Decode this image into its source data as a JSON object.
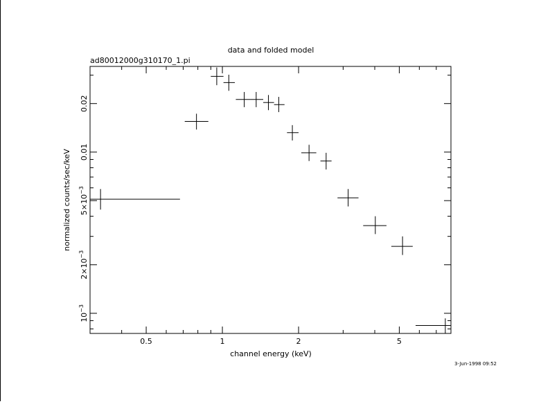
{
  "chart_data": {
    "type": "scatter",
    "title": "data and folded model",
    "subtitle": "ad80012000g310170_1.pi",
    "xlabel": "channel energy (keV)",
    "ylabel": "normalized counts/sec/keV",
    "x_scale": "log",
    "y_scale": "log",
    "xlim": [
      0.3,
      8.0
    ],
    "ylim": [
      0.00075,
      0.034
    ],
    "x_ticks": [
      {
        "value": 0.5,
        "label": "0.5"
      },
      {
        "value": 1,
        "label": "1"
      },
      {
        "value": 2,
        "label": "2"
      },
      {
        "value": 5,
        "label": "5"
      }
    ],
    "y_ticks": [
      {
        "value": 0.001,
        "mant": "10",
        "exp": "−3"
      },
      {
        "value": 0.002,
        "mant": "2×10",
        "exp": "−3"
      },
      {
        "value": 0.005,
        "mant": "5×10",
        "exp": "−3"
      },
      {
        "value": 0.01,
        "mant": "0.01",
        "exp": ""
      },
      {
        "value": 0.02,
        "mant": "0.02",
        "exp": ""
      }
    ],
    "grid": false,
    "legend": "none",
    "marker_color": "#000000",
    "series": [
      {
        "points": [
          {
            "x": 0.33,
            "xlo": 0.3,
            "xhi": 0.68,
            "y": 0.0051,
            "ylo": 0.0044,
            "yhi": 0.0059
          },
          {
            "x": 0.79,
            "xlo": 0.71,
            "xhi": 0.88,
            "y": 0.0155,
            "ylo": 0.0138,
            "yhi": 0.0173
          },
          {
            "x": 0.95,
            "xlo": 0.9,
            "xhi": 1.01,
            "y": 0.0295,
            "ylo": 0.026,
            "yhi": 0.0335
          },
          {
            "x": 1.06,
            "xlo": 1.01,
            "xhi": 1.12,
            "y": 0.027,
            "ylo": 0.024,
            "yhi": 0.0302
          },
          {
            "x": 1.22,
            "xlo": 1.13,
            "xhi": 1.29,
            "y": 0.0212,
            "ylo": 0.019,
            "yhi": 0.0236
          },
          {
            "x": 1.36,
            "xlo": 1.29,
            "xhi": 1.45,
            "y": 0.0212,
            "ylo": 0.019,
            "yhi": 0.0236
          },
          {
            "x": 1.52,
            "xlo": 1.45,
            "xhi": 1.6,
            "y": 0.0203,
            "ylo": 0.0182,
            "yhi": 0.0226
          },
          {
            "x": 1.67,
            "xlo": 1.6,
            "xhi": 1.76,
            "y": 0.0197,
            "ylo": 0.0177,
            "yhi": 0.022
          },
          {
            "x": 1.89,
            "xlo": 1.8,
            "xhi": 2.0,
            "y": 0.0132,
            "ylo": 0.0118,
            "yhi": 0.0147
          },
          {
            "x": 2.2,
            "xlo": 2.05,
            "xhi": 2.35,
            "y": 0.0099,
            "ylo": 0.0088,
            "yhi": 0.0111
          },
          {
            "x": 2.57,
            "xlo": 2.44,
            "xhi": 2.7,
            "y": 0.0088,
            "ylo": 0.0078,
            "yhi": 0.0099
          },
          {
            "x": 3.14,
            "xlo": 2.85,
            "xhi": 3.45,
            "y": 0.0052,
            "ylo": 0.0046,
            "yhi": 0.0059
          },
          {
            "x": 4.02,
            "xlo": 3.6,
            "xhi": 4.45,
            "y": 0.0035,
            "ylo": 0.0031,
            "yhi": 0.004
          },
          {
            "x": 5.15,
            "xlo": 4.65,
            "xhi": 5.65,
            "y": 0.0026,
            "ylo": 0.0023,
            "yhi": 0.003
          },
          {
            "x": 7.6,
            "xlo": 5.8,
            "xhi": 8.0,
            "y": 0.00084,
            "ylo": 0.00075,
            "yhi": 0.00093
          }
        ]
      }
    ]
  },
  "footer": {
    "timestamp": "3-Jun-1998 09:52"
  }
}
